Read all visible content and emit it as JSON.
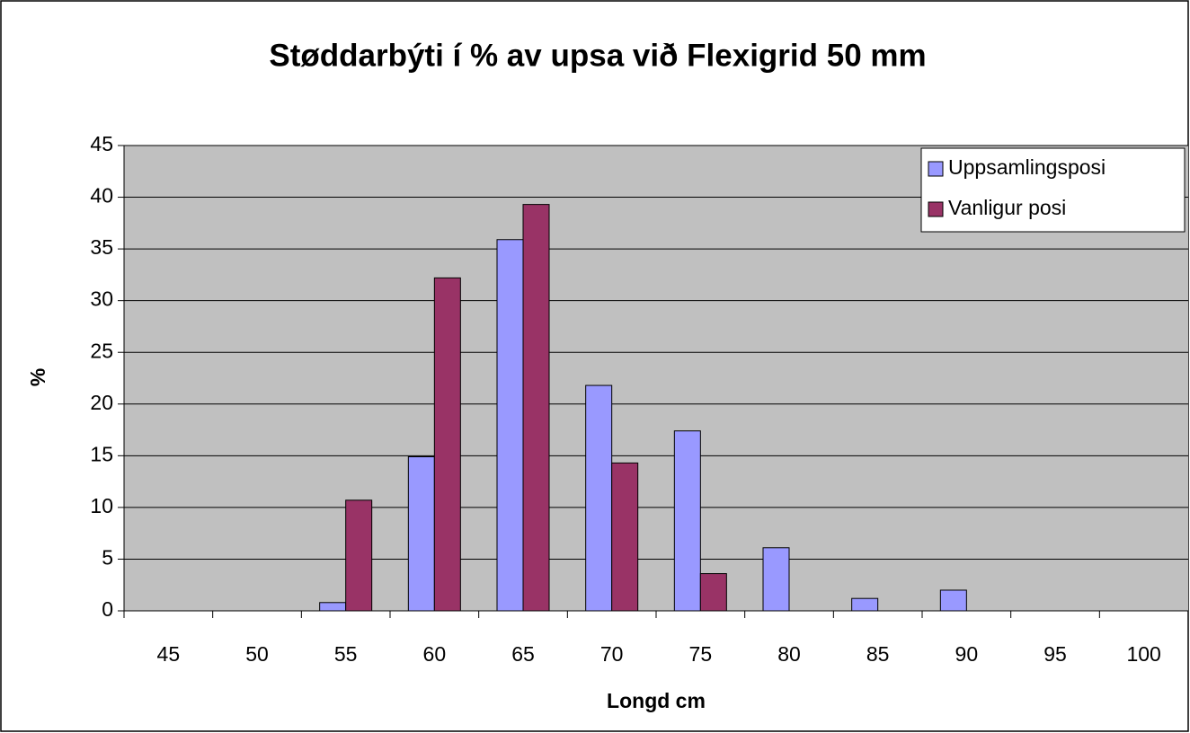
{
  "chart_data": {
    "type": "bar",
    "title": "Støddarbýti í % av upsa við Flexigrid 50 mm",
    "x_label": "Longd cm",
    "y_label": "%",
    "categories": [
      "45",
      "50",
      "55",
      "60",
      "65",
      "70",
      "75",
      "80",
      "85",
      "90",
      "95",
      "100"
    ],
    "series": [
      {
        "name": "Uppsamlingsposi",
        "color": "#9999ff",
        "values": [
          0,
          0,
          0.8,
          14.9,
          35.9,
          21.8,
          17.4,
          6.1,
          1.2,
          2.0,
          0,
          0
        ]
      },
      {
        "name": "Vanligur posi",
        "color": "#993366",
        "values": [
          0,
          0,
          10.7,
          32.2,
          39.3,
          14.3,
          3.6,
          0,
          0,
          0,
          0,
          0
        ]
      }
    ],
    "ylim": [
      0,
      45
    ],
    "yticks": [
      0,
      5,
      10,
      15,
      20,
      25,
      30,
      35,
      40,
      45
    ],
    "grid": true,
    "legend": "top-right",
    "plot_background": "#c0c0c0"
  }
}
